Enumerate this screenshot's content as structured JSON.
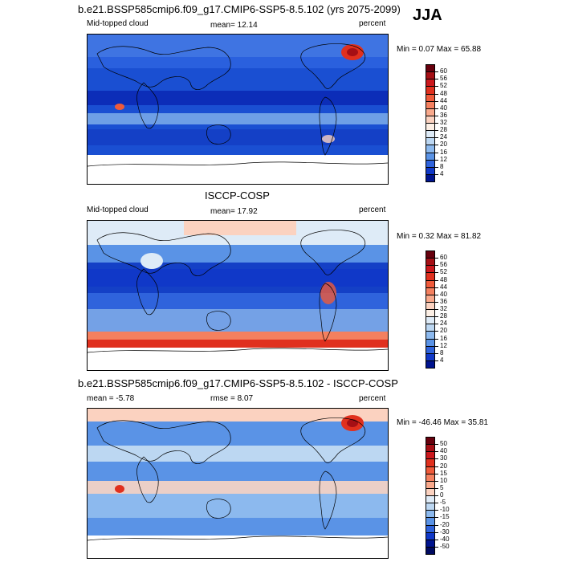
{
  "season": "JJA",
  "panels": [
    {
      "title": "b.e21.BSSP585cmip6.f09_g17.CMIP6-SSP5-8.5.102 (yrs 2075-2099)",
      "left_label": "Mid-topped cloud",
      "mid_label": "mean=  12.14",
      "right_label": "percent",
      "minmax": "Min =  0.07 Max =  65.88",
      "colorbar": {
        "labels": [
          "60",
          "56",
          "52",
          "48",
          "44",
          "40",
          "36",
          "32",
          "28",
          "24",
          "20",
          "16",
          "12",
          "8",
          "4"
        ],
        "colors": [
          "#67000d",
          "#a50f15",
          "#cb181d",
          "#e0301e",
          "#ef5a3a",
          "#f4805f",
          "#f9a98c",
          "#fbd2c0",
          "#fdf0e6",
          "#deebf7",
          "#bcd7f2",
          "#8cb9ee",
          "#5a93e6",
          "#2f63dc",
          "#1038c8",
          "#00148f"
        ]
      }
    },
    {
      "title": "ISCCP-COSP",
      "left_label": "Mid-topped cloud",
      "mid_label": "mean=  17.92",
      "right_label": "percent",
      "minmax": "Min =  0.32 Max =  81.82",
      "colorbar": {
        "labels": [
          "60",
          "56",
          "52",
          "48",
          "44",
          "40",
          "36",
          "32",
          "28",
          "24",
          "20",
          "16",
          "12",
          "8",
          "4"
        ],
        "colors": [
          "#67000d",
          "#a50f15",
          "#cb181d",
          "#e0301e",
          "#ef5a3a",
          "#f4805f",
          "#f9a98c",
          "#fbd2c0",
          "#fdf0e6",
          "#deebf7",
          "#bcd7f2",
          "#8cb9ee",
          "#5a93e6",
          "#2f63dc",
          "#1038c8",
          "#00148f"
        ]
      }
    },
    {
      "title": "b.e21.BSSP585cmip6.f09_g17.CMIP6-SSP5-8.5.102 - ISCCP-COSP",
      "left_label": "mean =  -5.78",
      "mid_label": "rmse =  8.07",
      "right_label": "percent",
      "minmax": "Min = -46.46 Max =  35.81",
      "colorbar": {
        "labels": [
          "50",
          "40",
          "30",
          "20",
          "15",
          "10",
          "5",
          "0",
          "-5",
          "-10",
          "-15",
          "-20",
          "-30",
          "-40",
          "-50"
        ],
        "colors": [
          "#67000d",
          "#a50f15",
          "#cb181d",
          "#e0301e",
          "#ef5a3a",
          "#f4805f",
          "#f9a98c",
          "#fbd2c0",
          "#deebf7",
          "#bcd7f2",
          "#8cb9ee",
          "#5a93e6",
          "#2f63dc",
          "#1038c8",
          "#00148f",
          "#000a60"
        ]
      }
    }
  ]
}
